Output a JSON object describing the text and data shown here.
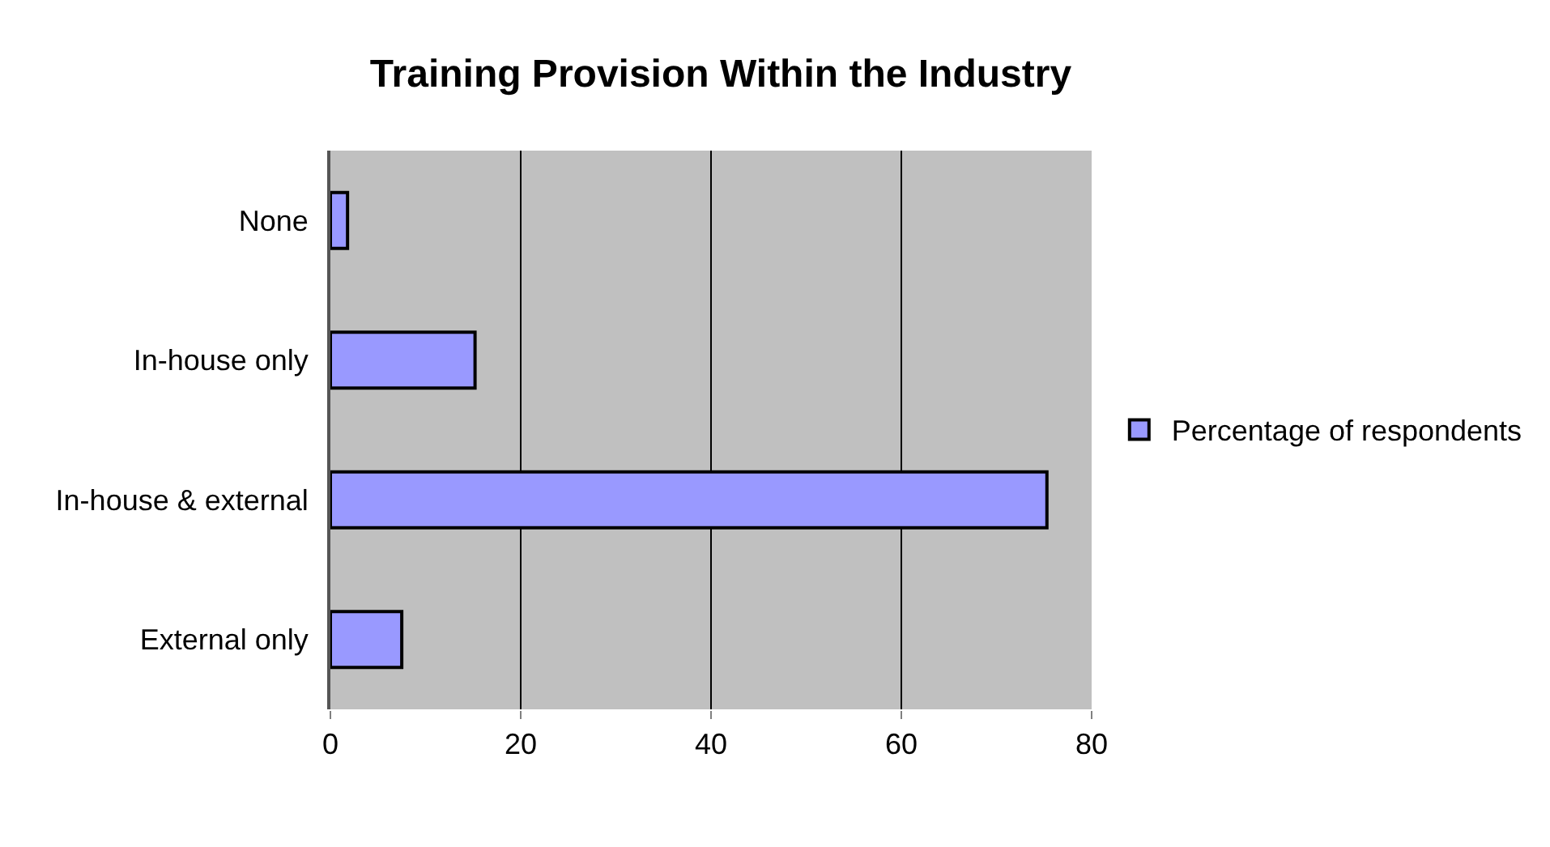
{
  "chart_data": {
    "type": "bar",
    "orientation": "horizontal",
    "title": "Training Provision Within the Industry",
    "categories": [
      "None",
      "In-house only",
      "In-house & external",
      "External only"
    ],
    "series": [
      {
        "name": "Percentage of respondents",
        "color": "#9999ff",
        "values": [
          1.8,
          15.2,
          75.3,
          7.5
        ]
      }
    ],
    "xlim": [
      0,
      80
    ],
    "xticks": [
      0,
      20,
      40,
      60,
      80
    ],
    "grid": "x",
    "legend": "right"
  }
}
